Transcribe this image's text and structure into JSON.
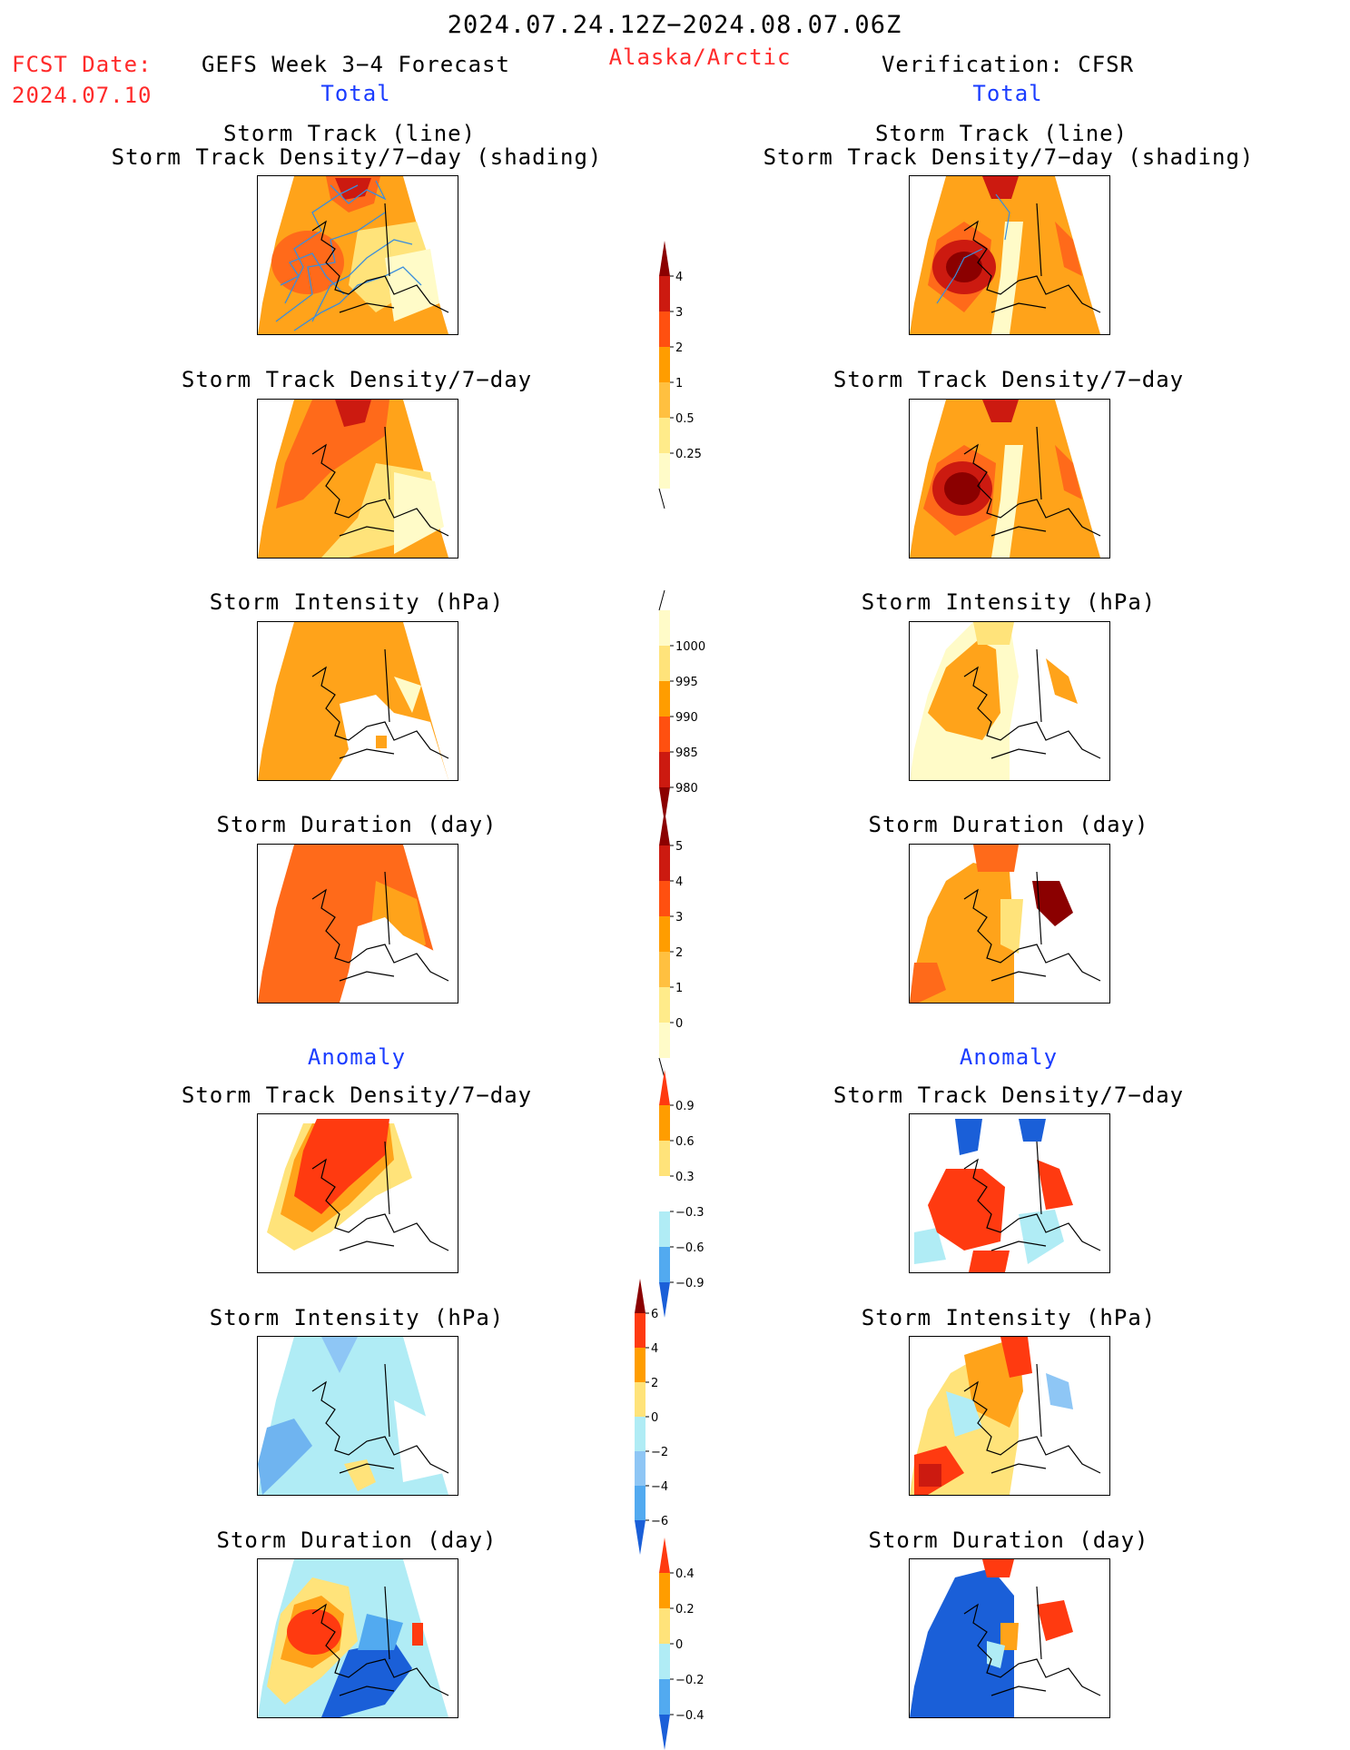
{
  "header": {
    "date_range": "2024.07.24.12Z−2024.08.07.06Z",
    "fcst_date_label": "FCST Date:",
    "fcst_date_value": "2024.07.10",
    "forecast_title": "GEFS Week 3−4 Forecast",
    "region": "Alaska/Arctic",
    "verification": "Verification: CFSR"
  },
  "sections": {
    "total": "Total",
    "anomaly": "Anomaly"
  },
  "panel_titles": {
    "track_line": "Storm Track (line)",
    "track_shading": "Storm Track Density/7−day (shading)",
    "density": "Storm Track Density/7−day",
    "intensity": "Storm Intensity (hPa)",
    "duration": "Storm Duration (day)"
  },
  "colorbars": [
    {
      "id": "density-total",
      "labels": [
        "4",
        "3",
        "2",
        "1",
        "0.5",
        "0.25"
      ],
      "colors": [
        "#8b0000",
        "#cc1a10",
        "#ff5010",
        "#ff9d00",
        "#ffc040",
        "#ffeb8a",
        "#fffbc8"
      ],
      "tail": "bottom"
    },
    {
      "id": "intensity-total",
      "labels": [
        "1000",
        "995",
        "990",
        "985",
        "980"
      ],
      "colors": [
        "#fffbc8",
        "#ffe37a",
        "#ff9d00",
        "#ff5010",
        "#cc1a10",
        "#8b0000"
      ],
      "tail": "top"
    },
    {
      "id": "duration-total",
      "labels": [
        "5",
        "4",
        "3",
        "2",
        "1",
        "0"
      ],
      "colors": [
        "#8b0000",
        "#cc1a10",
        "#ff5010",
        "#ff9d00",
        "#ffc040",
        "#ffeb8a",
        "#fffbc8"
      ],
      "tail": "bottom"
    },
    {
      "id": "density-anom",
      "labels": [
        "0.9",
        "0.6",
        "0.3",
        "−0.3",
        "−0.6",
        "−0.9"
      ],
      "colors": [
        "#ff3a10",
        "#ff9d00",
        "#ffe37a",
        "#ffffff",
        "#b0ecf5",
        "#52aaf0",
        "#1a5fd8"
      ]
    },
    {
      "id": "intensity-anom",
      "labels": [
        "6",
        "4",
        "2",
        "0",
        "−2",
        "−4",
        "−6"
      ],
      "colors": [
        "#8b0000",
        "#ff3a10",
        "#ff9d00",
        "#ffe37a",
        "#b0ecf5",
        "#8ec6f5",
        "#52aaf0",
        "#1a5fd8"
      ]
    },
    {
      "id": "duration-anom",
      "labels": [
        "0.4",
        "0.2",
        "0",
        "−0.2",
        "−0.4"
      ],
      "colors": [
        "#ff3a10",
        "#ff9d00",
        "#ffe37a",
        "#b0ecf5",
        "#52aaf0",
        "#1a5fd8"
      ]
    }
  ],
  "colors": {
    "title_red": "#ff2a2a",
    "section_blue": "#1a3cff"
  }
}
